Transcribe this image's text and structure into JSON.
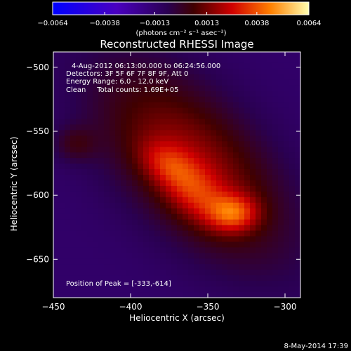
{
  "chart_data": {
    "type": "heatmap",
    "title": "Reconstructed RHESSI Image",
    "xlabel": "Heliocentric X (arcsec)",
    "ylabel": "Heliocentric Y (arcsec)",
    "xlim": [
      -450,
      -290
    ],
    "ylim": [
      -680,
      -488
    ],
    "x_ticks": [
      -450,
      -400,
      -350,
      -300
    ],
    "y_ticks": [
      -500,
      -550,
      -600,
      -650
    ],
    "annotations": [
      "4-Aug-2012 06:13:00.000 to 06:24:56.000",
      "Detectors: 3F 5F 6F 7F 8F 9F, Att 0",
      "Energy Range: 6.0 - 12.0 keV",
      "Clean     Total counts: 1.69E+05"
    ],
    "peak_label": "Position of Peak = [-333,-614]",
    "peak": {
      "x": -333,
      "y": -614
    },
    "colorbar": {
      "range": [
        -0.0064,
        0.0064
      ],
      "ticks": [
        "-0.0064",
        "-0.0038",
        "-0.0013",
        "0.0013",
        "0.0038",
        "0.0064"
      ],
      "unit_label": "(photons cm⁻² s⁻¹ asec⁻²)"
    },
    "colormap": [
      "#0000ff",
      "#4a00c0",
      "#2a0050",
      "#200030",
      "#c00000",
      "#ff5000",
      "#ffa000",
      "#ffff80"
    ],
    "sources": [
      {
        "x": -360,
        "y": -575,
        "sx": 60,
        "sy": 30,
        "angle_deg": -55,
        "amp": 0.003
      },
      {
        "x": -358,
        "y": -598,
        "sx": 20,
        "sy": 12,
        "angle_deg": -55,
        "amp": 0.002
      },
      {
        "x": -333,
        "y": -614,
        "sx": 11,
        "sy": 10,
        "angle_deg": 0,
        "amp": 0.003
      },
      {
        "x": -377,
        "y": -575,
        "sx": 14,
        "sy": 10,
        "angle_deg": -45,
        "amp": 0.0015
      },
      {
        "x": -436,
        "y": -560,
        "sx": 10,
        "sy": 10,
        "angle_deg": 0,
        "amp": 0.0012
      }
    ],
    "background_level": -0.0012
  },
  "footer": {
    "date": "8-May-2014 17:39"
  }
}
